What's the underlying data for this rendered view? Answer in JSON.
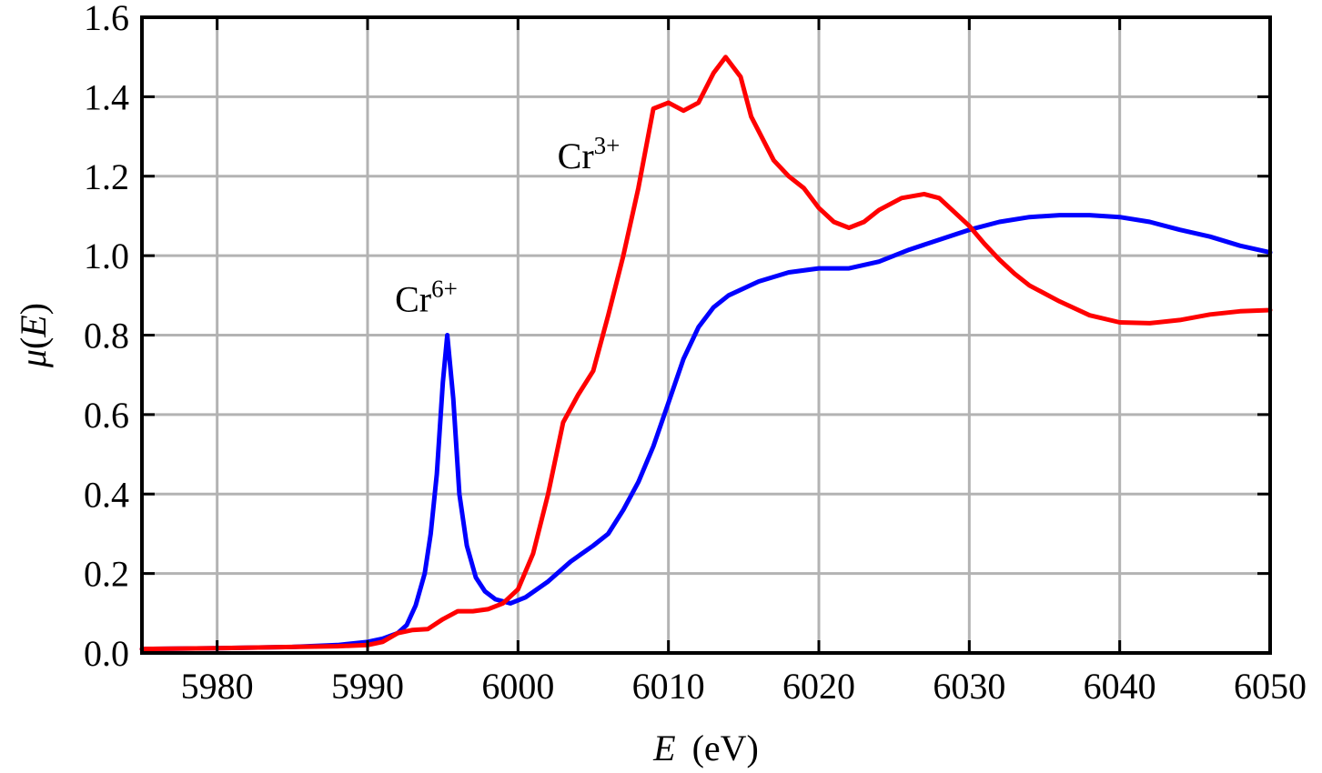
{
  "chart_data": {
    "type": "line",
    "xlabel": {
      "var": "E",
      "unit": "(eV)"
    },
    "ylabel": {
      "func": "μ",
      "arg": "E"
    },
    "xlim": [
      5975,
      6050
    ],
    "ylim": [
      0,
      1.6
    ],
    "grid": true,
    "x_ticks": [
      5980,
      5990,
      6000,
      6010,
      6020,
      6030,
      6040,
      6050
    ],
    "x_tick_labels": [
      "5980",
      "5990",
      "6000",
      "6010",
      "6020",
      "6030",
      "6040",
      "6050"
    ],
    "y_ticks": [
      0,
      0.2,
      0.4,
      0.6,
      0.8,
      1.0,
      1.2,
      1.4,
      1.6
    ],
    "y_tick_labels": [
      "0.0",
      "0.2",
      "0.4",
      "0.6",
      "0.8",
      "1.0",
      "1.2",
      "1.4",
      "1.6"
    ],
    "series": [
      {
        "name": "Cr6+",
        "label_base": "Cr",
        "label_sup": "6+",
        "color": "#0000ff",
        "label_at": [
          5993.9,
          0.86
        ],
        "points": [
          [
            5975,
            0.01
          ],
          [
            5980,
            0.012
          ],
          [
            5985,
            0.015
          ],
          [
            5988,
            0.02
          ],
          [
            5990,
            0.028
          ],
          [
            5991,
            0.036
          ],
          [
            5992,
            0.05
          ],
          [
            5992.6,
            0.07
          ],
          [
            5993.2,
            0.12
          ],
          [
            5993.8,
            0.2
          ],
          [
            5994.2,
            0.3
          ],
          [
            5994.6,
            0.45
          ],
          [
            5995.0,
            0.68
          ],
          [
            5995.3,
            0.8
          ],
          [
            5995.7,
            0.64
          ],
          [
            5996.1,
            0.4
          ],
          [
            5996.6,
            0.27
          ],
          [
            5997.2,
            0.19
          ],
          [
            5997.8,
            0.155
          ],
          [
            5998.5,
            0.135
          ],
          [
            5999.5,
            0.125
          ],
          [
            6000.5,
            0.14
          ],
          [
            6002,
            0.18
          ],
          [
            6003.5,
            0.23
          ],
          [
            6005,
            0.27
          ],
          [
            6006,
            0.3
          ],
          [
            6007,
            0.36
          ],
          [
            6008,
            0.43
          ],
          [
            6009,
            0.52
          ],
          [
            6010,
            0.63
          ],
          [
            6011,
            0.74
          ],
          [
            6012,
            0.82
          ],
          [
            6013,
            0.87
          ],
          [
            6014,
            0.9
          ],
          [
            6016,
            0.935
          ],
          [
            6018,
            0.958
          ],
          [
            6020,
            0.968
          ],
          [
            6022,
            0.968
          ],
          [
            6024,
            0.985
          ],
          [
            6026,
            1.015
          ],
          [
            6028,
            1.04
          ],
          [
            6030,
            1.065
          ],
          [
            6032,
            1.085
          ],
          [
            6034,
            1.097
          ],
          [
            6036,
            1.102
          ],
          [
            6038,
            1.102
          ],
          [
            6040,
            1.097
          ],
          [
            6042,
            1.085
          ],
          [
            6044,
            1.065
          ],
          [
            6046,
            1.048
          ],
          [
            6048,
            1.025
          ],
          [
            6050,
            1.008
          ]
        ]
      },
      {
        "name": "Cr3+",
        "label_base": "Cr",
        "label_sup": "3+",
        "color": "#ff0000",
        "label_at": [
          6004.7,
          1.22
        ],
        "points": [
          [
            5975,
            0.01
          ],
          [
            5980,
            0.012
          ],
          [
            5985,
            0.015
          ],
          [
            5988,
            0.017
          ],
          [
            5990,
            0.02
          ],
          [
            5991,
            0.028
          ],
          [
            5992,
            0.05
          ],
          [
            5993,
            0.058
          ],
          [
            5994,
            0.06
          ],
          [
            5995,
            0.085
          ],
          [
            5996,
            0.105
          ],
          [
            5997,
            0.105
          ],
          [
            5998,
            0.11
          ],
          [
            5999,
            0.125
          ],
          [
            6000,
            0.16
          ],
          [
            6001,
            0.25
          ],
          [
            6002,
            0.4
          ],
          [
            6003,
            0.58
          ],
          [
            6004,
            0.65
          ],
          [
            6005,
            0.71
          ],
          [
            6006,
            0.85
          ],
          [
            6007,
            1.0
          ],
          [
            6008,
            1.17
          ],
          [
            6009,
            1.37
          ],
          [
            6010,
            1.385
          ],
          [
            6011,
            1.365
          ],
          [
            6012,
            1.385
          ],
          [
            6013,
            1.46
          ],
          [
            6013.8,
            1.5
          ],
          [
            6014.8,
            1.45
          ],
          [
            6015.5,
            1.35
          ],
          [
            6017,
            1.24
          ],
          [
            6018,
            1.2
          ],
          [
            6019,
            1.17
          ],
          [
            6020,
            1.12
          ],
          [
            6021,
            1.085
          ],
          [
            6022,
            1.07
          ],
          [
            6023,
            1.085
          ],
          [
            6024,
            1.115
          ],
          [
            6025.5,
            1.145
          ],
          [
            6027,
            1.155
          ],
          [
            6028,
            1.145
          ],
          [
            6029,
            1.11
          ],
          [
            6030,
            1.075
          ],
          [
            6031,
            1.03
          ],
          [
            6032,
            0.99
          ],
          [
            6033,
            0.955
          ],
          [
            6034,
            0.925
          ],
          [
            6036,
            0.885
          ],
          [
            6038,
            0.85
          ],
          [
            6040,
            0.832
          ],
          [
            6042,
            0.83
          ],
          [
            6044,
            0.838
          ],
          [
            6046,
            0.852
          ],
          [
            6048,
            0.86
          ],
          [
            6050,
            0.863
          ]
        ]
      }
    ]
  }
}
